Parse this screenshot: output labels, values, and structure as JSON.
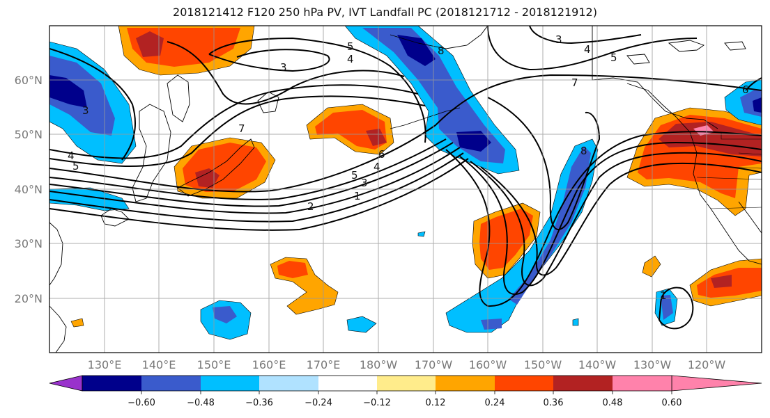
{
  "title": "2018121412 F120 250 hPa PV, IVT Landfall PC (2018121712 - 2018121912)",
  "lon_labels": [
    "130°E",
    "140°E",
    "150°E",
    "160°E",
    "170°E",
    "180°W",
    "170°W",
    "160°W",
    "150°W",
    "140°W",
    "130°W",
    "120°W"
  ],
  "lat_labels": [
    "60°N",
    "50°N",
    "40°N",
    "30°N",
    "20°N"
  ],
  "colorbar": {
    "ticks": [
      "−0.60",
      "−0.48",
      "−0.36",
      "−0.24",
      "−0.12",
      "0.12",
      "0.24",
      "0.36",
      "0.48",
      "0.60"
    ],
    "colors": [
      "#9932CC",
      "#00008B",
      "#3A5BCC",
      "#00BFFF",
      "#B0E2FF",
      "#FFFFFF",
      "#FFEC8B",
      "#FFA500",
      "#FF4500",
      "#B22222",
      "#FF82AB"
    ]
  },
  "contour_labels": [
    "5",
    "4",
    "3",
    "8",
    "3",
    "4",
    "5",
    "7",
    "6",
    "3",
    "4",
    "5",
    "7",
    "6",
    "5",
    "3",
    "4",
    "2",
    "1",
    "8",
    "1"
  ]
}
